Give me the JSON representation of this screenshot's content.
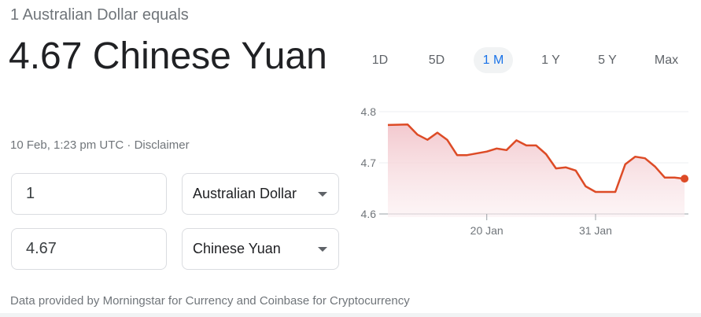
{
  "header": {
    "subtitle": "1 Australian Dollar equals",
    "result": "4.67 Chinese Yuan",
    "timestamp": "10 Feb, 1:23 pm UTC · ",
    "disclaimer": "Disclaimer"
  },
  "converter": {
    "from": {
      "amount": "1",
      "currency": "Australian Dollar"
    },
    "to": {
      "amount": "4.67",
      "currency": "Chinese Yuan"
    }
  },
  "range_tabs": [
    {
      "label": "1D"
    },
    {
      "label": "5D"
    },
    {
      "label": "1 M",
      "active": true
    },
    {
      "label": "1 Y"
    },
    {
      "label": "5 Y"
    },
    {
      "label": "Max"
    }
  ],
  "footer": "Data provided by Morningstar for Currency and Coinbase for Cryptocurrency",
  "chart_data": {
    "type": "area",
    "title": "",
    "xlabel": "",
    "ylabel": "",
    "ylim": [
      4.6,
      4.8
    ],
    "yticks": [
      "4.8",
      "4.7",
      "4.6"
    ],
    "xticks": [
      "20 Jan",
      "31 Jan"
    ],
    "grid": true,
    "line_color": "#dd4b26",
    "fill_color": "#f2c6cc",
    "x": [
      "10 Jan",
      "12 Jan",
      "13 Jan",
      "14 Jan",
      "15 Jan",
      "16 Jan",
      "17 Jan",
      "18 Jan",
      "20 Jan",
      "21 Jan",
      "22 Jan",
      "23 Jan",
      "24 Jan",
      "25 Jan",
      "26 Jan",
      "27 Jan",
      "28 Jan",
      "29 Jan",
      "30 Jan",
      "31 Jan",
      "2 Feb",
      "3 Feb",
      "4 Feb",
      "5 Feb",
      "6 Feb",
      "7 Feb",
      "8 Feb",
      "9 Feb"
    ],
    "values": [
      4.774,
      4.775,
      4.755,
      4.745,
      4.759,
      4.745,
      4.715,
      4.715,
      4.722,
      4.728,
      4.725,
      4.744,
      4.734,
      4.734,
      4.717,
      4.689,
      4.691,
      4.685,
      4.654,
      4.643,
      4.643,
      4.697,
      4.712,
      4.709,
      4.693,
      4.671,
      4.671,
      4.669
    ]
  }
}
